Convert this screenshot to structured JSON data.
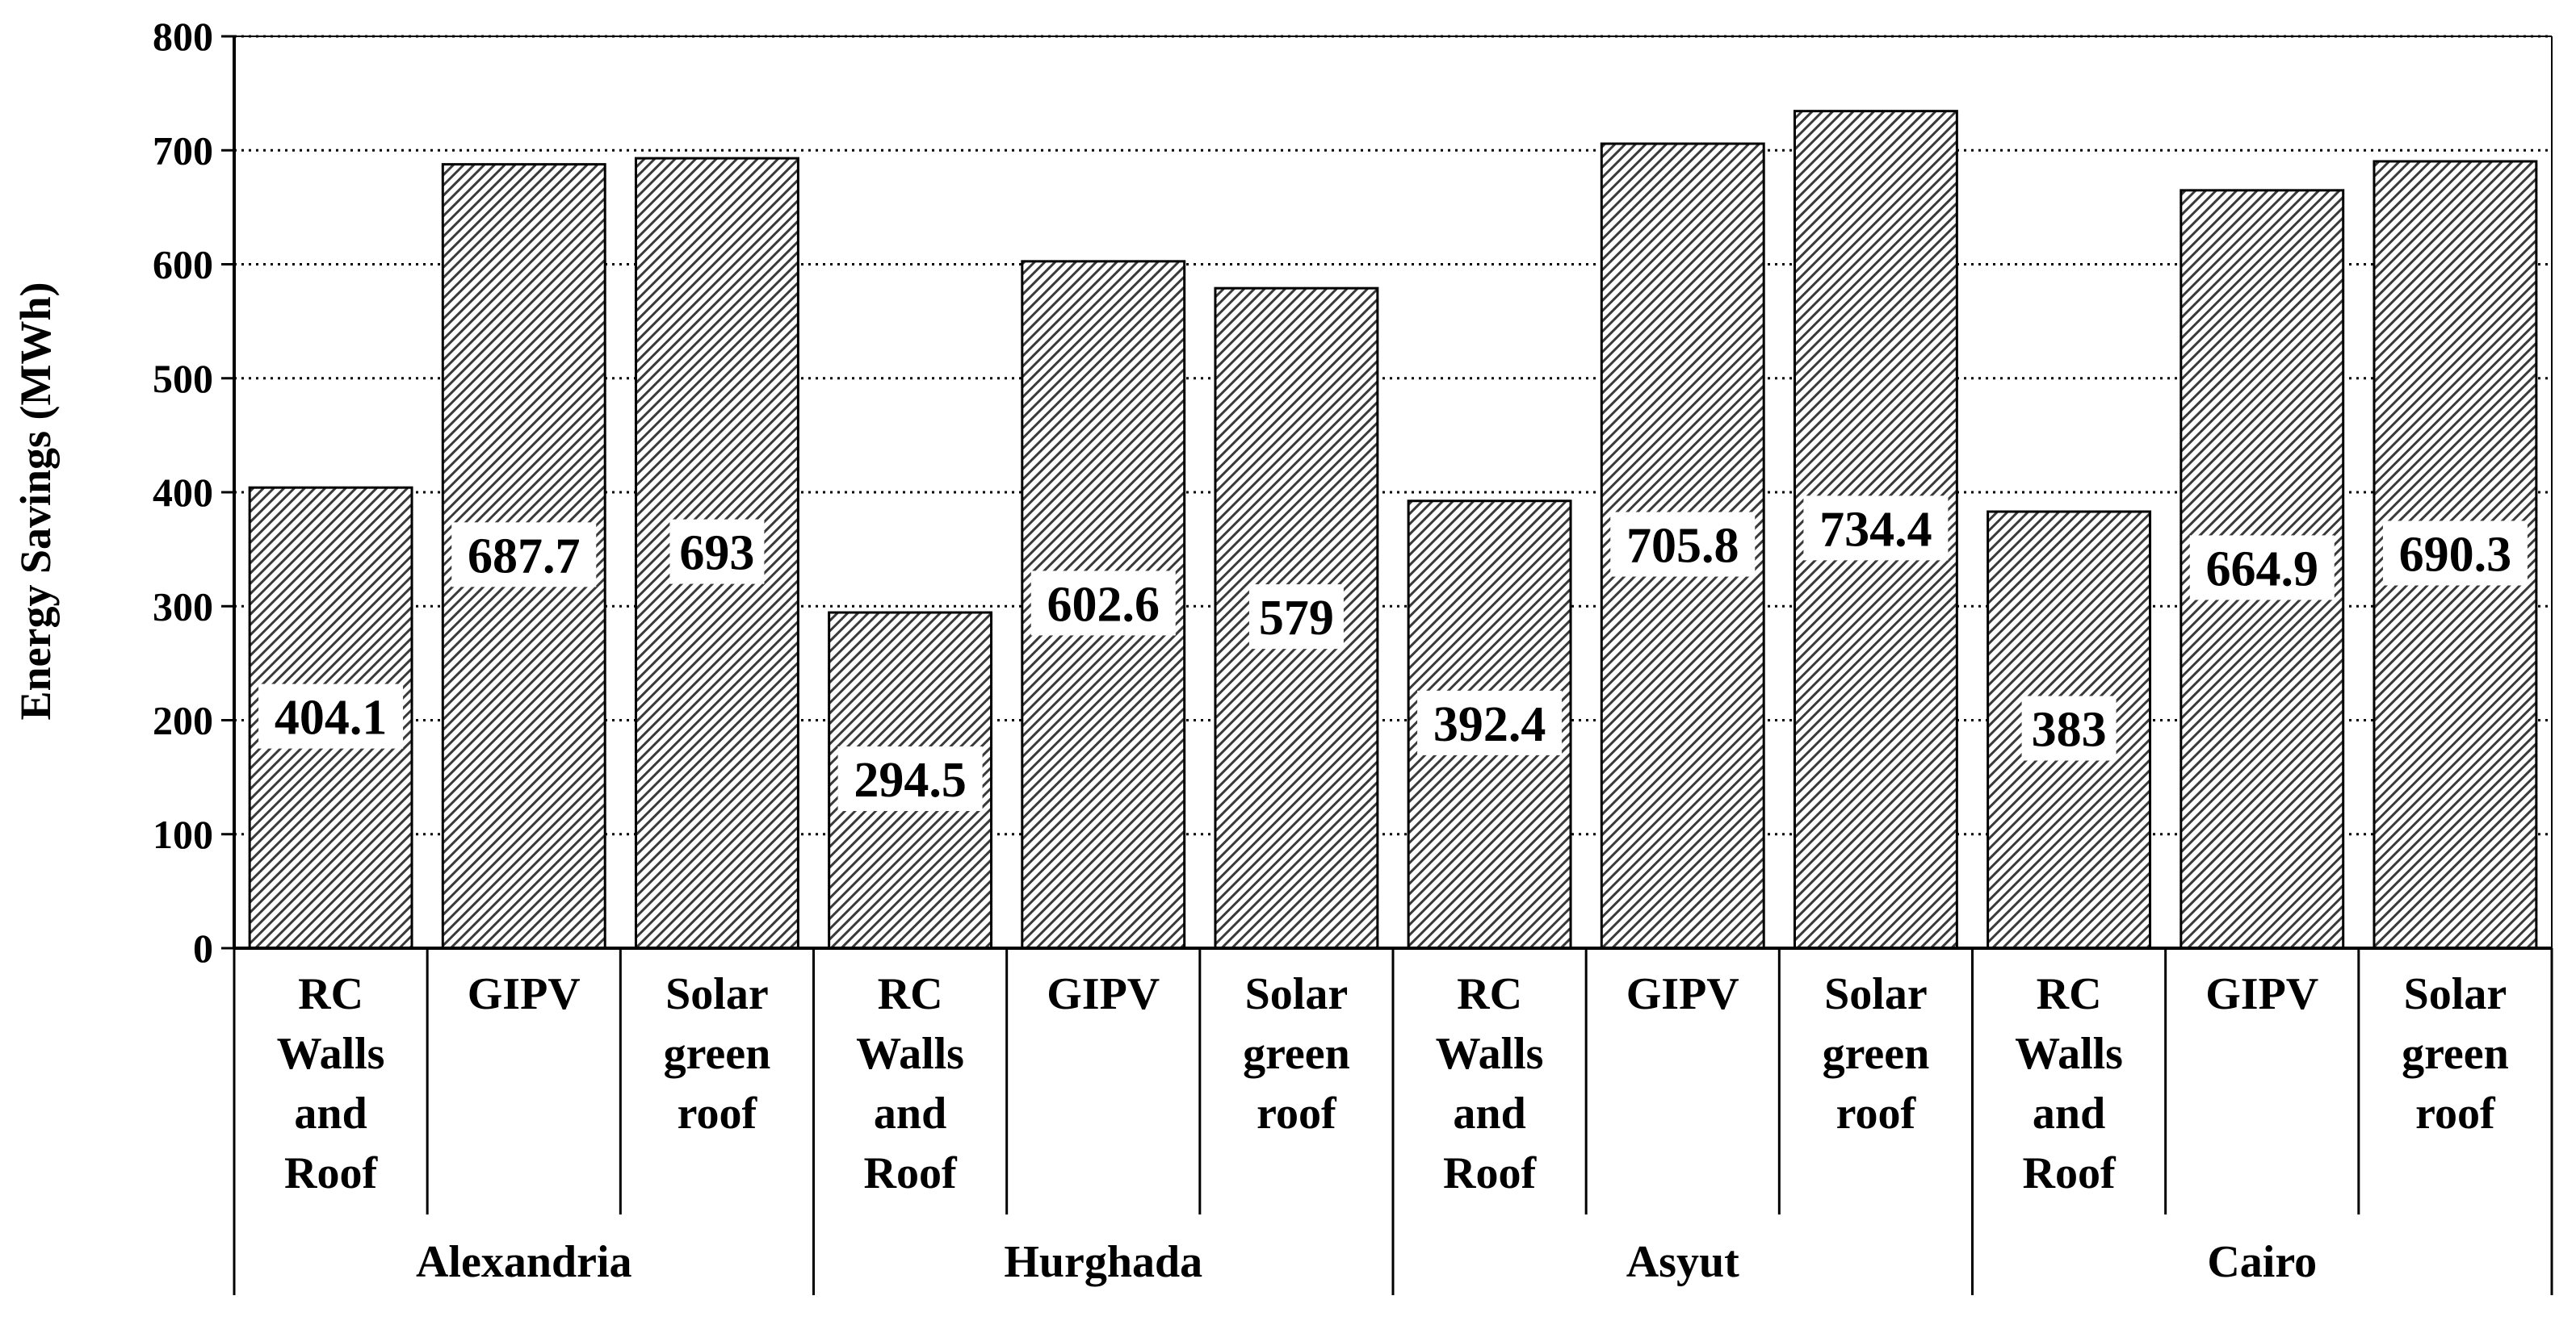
{
  "chart_data": {
    "type": "bar",
    "title": "",
    "xlabel": "",
    "ylabel": "Energy Savings (MWh)",
    "ylim": [
      0,
      800
    ],
    "yticks": [
      0,
      100,
      200,
      300,
      400,
      500,
      600,
      700,
      800
    ],
    "grid": "horizontal dotted",
    "legend": "none",
    "fill": "diagonal hatch, grey",
    "groups": [
      {
        "name": "Alexandria",
        "categories": [
          "RC Walls and Roof",
          "GIPV",
          "Solar green roof"
        ],
        "values": [
          404.1,
          687.7,
          693
        ],
        "labels": [
          "404.1",
          "687.7",
          "693"
        ]
      },
      {
        "name": "Hurghada",
        "categories": [
          "RC Walls and Roof",
          "GIPV",
          "Solar green roof"
        ],
        "values": [
          294.5,
          602.6,
          579
        ],
        "labels": [
          "294.5",
          "602.6",
          "579"
        ]
      },
      {
        "name": "Asyut",
        "categories": [
          "RC Walls and Roof",
          "GIPV",
          "Solar green roof"
        ],
        "values": [
          392.4,
          705.8,
          734.4
        ],
        "labels": [
          "392.4",
          "705.8",
          "734.4"
        ]
      },
      {
        "name": "Cairo",
        "categories": [
          "RC Walls and Roof",
          "GIPV",
          "Solar green roof"
        ],
        "values": [
          383,
          664.9,
          690.3
        ],
        "labels": [
          "383",
          "664.9",
          "690.3"
        ]
      }
    ],
    "category_lines": {
      "RC Walls and Roof": [
        "RC",
        "Walls",
        "and",
        "Roof"
      ],
      "GIPV": [
        "GIPV"
      ],
      "Solar green roof": [
        "Solar",
        "green",
        "roof"
      ]
    }
  }
}
